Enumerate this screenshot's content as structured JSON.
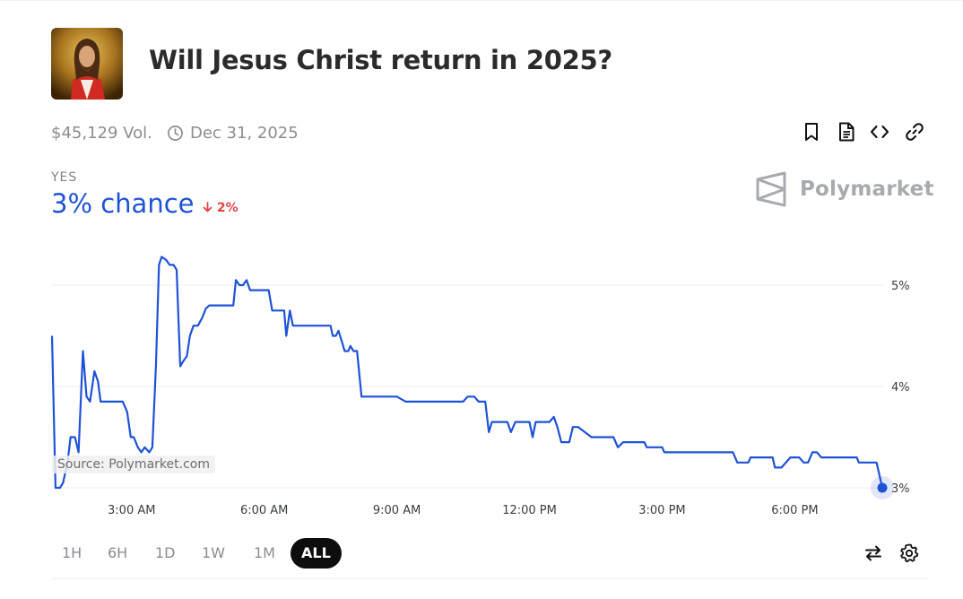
{
  "market": {
    "title": "Will Jesus Christ return in 2025?",
    "volume": "$45,129 Vol.",
    "end_date": "Dec 31, 2025"
  },
  "outcome": {
    "label": "YES",
    "chance": "3% chance",
    "change": "2%",
    "change_direction": "down"
  },
  "brand": {
    "name": "Polymarket"
  },
  "source_label": "Source: Polymarket.com",
  "toolbar_icons": [
    "bookmark-icon",
    "document-icon",
    "code-embed-icon",
    "link-icon"
  ],
  "ranges": [
    "1H",
    "6H",
    "1D",
    "1W",
    "1M",
    "ALL"
  ],
  "selected_range": "ALL",
  "colors": {
    "accent": "#1f52d6",
    "down": "#e04545",
    "text": "#2b2b2b",
    "muted": "#8a8d93",
    "grid": "#eceef0"
  },
  "chart_data": {
    "type": "line",
    "x_unit": "hours",
    "y_unit": "percent",
    "xlim": [
      1.2,
      20.0
    ],
    "ylim": [
      3,
      5.3
    ],
    "y_ticks": [
      3,
      4,
      5
    ],
    "y_tick_labels": [
      "3%",
      "4%",
      "5%"
    ],
    "x_ticks": [
      3,
      6,
      9,
      12,
      15,
      18
    ],
    "x_tick_labels": [
      "3:00 AM",
      "6:00 AM",
      "9:00 AM",
      "12:00 PM",
      "3:00 PM",
      "6:00 PM"
    ],
    "grid": true,
    "series": [
      {
        "points": [
          [
            1.2,
            4.5
          ],
          [
            1.28,
            3.0
          ],
          [
            1.38,
            3.0
          ],
          [
            1.45,
            3.05
          ],
          [
            1.55,
            3.25
          ],
          [
            1.62,
            3.5
          ],
          [
            1.72,
            3.5
          ],
          [
            1.8,
            3.35
          ],
          [
            1.9,
            4.35
          ],
          [
            1.98,
            3.9
          ],
          [
            2.06,
            3.85
          ],
          [
            2.16,
            4.15
          ],
          [
            2.24,
            4.05
          ],
          [
            2.3,
            3.85
          ],
          [
            2.8,
            3.85
          ],
          [
            2.9,
            3.75
          ],
          [
            2.98,
            3.5
          ],
          [
            3.05,
            3.5
          ],
          [
            3.14,
            3.4
          ],
          [
            3.22,
            3.35
          ],
          [
            3.3,
            3.4
          ],
          [
            3.4,
            3.35
          ],
          [
            3.47,
            3.4
          ],
          [
            3.55,
            4.2
          ],
          [
            3.62,
            5.2
          ],
          [
            3.68,
            5.28
          ],
          [
            3.78,
            5.25
          ],
          [
            3.86,
            5.2
          ],
          [
            3.95,
            5.2
          ],
          [
            4.02,
            5.15
          ],
          [
            4.1,
            4.2
          ],
          [
            4.17,
            4.25
          ],
          [
            4.25,
            4.3
          ],
          [
            4.32,
            4.5
          ],
          [
            4.4,
            4.6
          ],
          [
            4.5,
            4.6
          ],
          [
            4.6,
            4.68
          ],
          [
            4.68,
            4.77
          ],
          [
            4.76,
            4.8
          ],
          [
            5.3,
            4.8
          ],
          [
            5.36,
            5.05
          ],
          [
            5.44,
            5.0
          ],
          [
            5.52,
            5.0
          ],
          [
            5.6,
            5.05
          ],
          [
            5.68,
            4.95
          ],
          [
            6.1,
            4.95
          ],
          [
            6.18,
            4.75
          ],
          [
            6.45,
            4.75
          ],
          [
            6.5,
            4.5
          ],
          [
            6.58,
            4.75
          ],
          [
            6.65,
            4.6
          ],
          [
            7.5,
            4.6
          ],
          [
            7.55,
            4.5
          ],
          [
            7.62,
            4.5
          ],
          [
            7.68,
            4.55
          ],
          [
            7.75,
            4.45
          ],
          [
            7.82,
            4.35
          ],
          [
            7.9,
            4.35
          ],
          [
            7.95,
            4.4
          ],
          [
            8.02,
            4.35
          ],
          [
            8.1,
            4.35
          ],
          [
            8.2,
            3.9
          ],
          [
            9.0,
            3.9
          ],
          [
            9.2,
            3.85
          ],
          [
            10.5,
            3.85
          ],
          [
            10.6,
            3.9
          ],
          [
            10.75,
            3.9
          ],
          [
            10.85,
            3.85
          ],
          [
            11.0,
            3.85
          ],
          [
            11.08,
            3.55
          ],
          [
            11.15,
            3.65
          ],
          [
            11.5,
            3.65
          ],
          [
            11.58,
            3.55
          ],
          [
            11.68,
            3.65
          ],
          [
            12.0,
            3.65
          ],
          [
            12.07,
            3.5
          ],
          [
            12.14,
            3.65
          ],
          [
            12.45,
            3.65
          ],
          [
            12.55,
            3.7
          ],
          [
            12.63,
            3.6
          ],
          [
            12.72,
            3.45
          ],
          [
            12.9,
            3.45
          ],
          [
            12.98,
            3.6
          ],
          [
            13.1,
            3.6
          ],
          [
            13.25,
            3.55
          ],
          [
            13.4,
            3.5
          ],
          [
            13.9,
            3.5
          ],
          [
            14.0,
            3.4
          ],
          [
            14.12,
            3.45
          ],
          [
            14.6,
            3.45
          ],
          [
            14.65,
            3.4
          ],
          [
            15.0,
            3.4
          ],
          [
            15.05,
            3.35
          ],
          [
            16.6,
            3.35
          ],
          [
            16.7,
            3.25
          ],
          [
            16.95,
            3.25
          ],
          [
            17.0,
            3.3
          ],
          [
            17.5,
            3.3
          ],
          [
            17.55,
            3.2
          ],
          [
            17.7,
            3.2
          ],
          [
            17.9,
            3.3
          ],
          [
            18.1,
            3.3
          ],
          [
            18.2,
            3.25
          ],
          [
            18.3,
            3.25
          ],
          [
            18.4,
            3.35
          ],
          [
            18.5,
            3.35
          ],
          [
            18.6,
            3.3
          ],
          [
            19.4,
            3.3
          ],
          [
            19.45,
            3.25
          ],
          [
            19.85,
            3.25
          ],
          [
            19.98,
            3.0
          ]
        ]
      }
    ]
  }
}
